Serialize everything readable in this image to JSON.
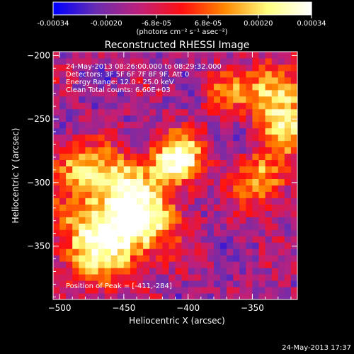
{
  "chart_data": {
    "type": "heatmap",
    "title": "Reconstructed RHESSI Image",
    "xlabel": "Heliocentric X (arcsec)",
    "ylabel": "Heliocentric Y (arcsec)",
    "xlim": [
      -505,
      -315
    ],
    "ylim": [
      -392,
      -197
    ],
    "x_ticks": [
      -500,
      -450,
      -400,
      -350
    ],
    "y_ticks": [
      -200,
      -250,
      -300,
      -350
    ],
    "colorbar": {
      "range": [
        -0.00034,
        0.00034
      ],
      "tick_values": [
        -0.00034,
        -0.0002,
        -6.8e-05,
        6.8e-05,
        0.0002,
        0.00034
      ],
      "tick_labels": [
        "-0.00034",
        "-0.00020",
        "-6.8e-05",
        "6.8e-05",
        "0.00020",
        "0.00034"
      ],
      "units_label": "(photons cm⁻² s⁻¹ asec⁻²)"
    },
    "info_lines": [
      "24-May-2013 08:26:00.000 to 08:29:32.000",
      "Detectors: 3F 5F 6F 7F 8F 9F, Att 0",
      "Energy Range: 12.0 - 25.0 keV",
      "Clean     Total counts: 6.60E+03"
    ],
    "peak_label": "Position of Peak = [-411,-284]",
    "peak_position": [
      -411,
      -284
    ],
    "source_regions": [
      {
        "x": -411,
        "y": -284,
        "radius": 14,
        "intensity": 1.0
      },
      {
        "x": -470,
        "y": -345,
        "radius": 24,
        "intensity": 0.9
      },
      {
        "x": -435,
        "y": -330,
        "radius": 18,
        "intensity": 0.7
      },
      {
        "x": -455,
        "y": -300,
        "radius": 16,
        "intensity": 0.6
      },
      {
        "x": -335,
        "y": -232,
        "radius": 16,
        "intensity": 0.8
      },
      {
        "x": -325,
        "y": -262,
        "radius": 12,
        "intensity": 0.6
      },
      {
        "x": -345,
        "y": -300,
        "radius": 15,
        "intensity": 0.6
      },
      {
        "x": -488,
        "y": -290,
        "radius": 14,
        "intensity": 0.55
      },
      {
        "x": -375,
        "y": -230,
        "radius": 12,
        "intensity": 0.4
      }
    ]
  },
  "footer": {
    "timestamp": "24-May-2013 17:37"
  },
  "colors": {
    "background": "#000000",
    "axes": "#ffffff",
    "colormap": [
      "#0000ff",
      "#6b2db0",
      "#c0207a",
      "#ff1010",
      "#ff8800",
      "#ffff80",
      "#ffffff"
    ]
  }
}
